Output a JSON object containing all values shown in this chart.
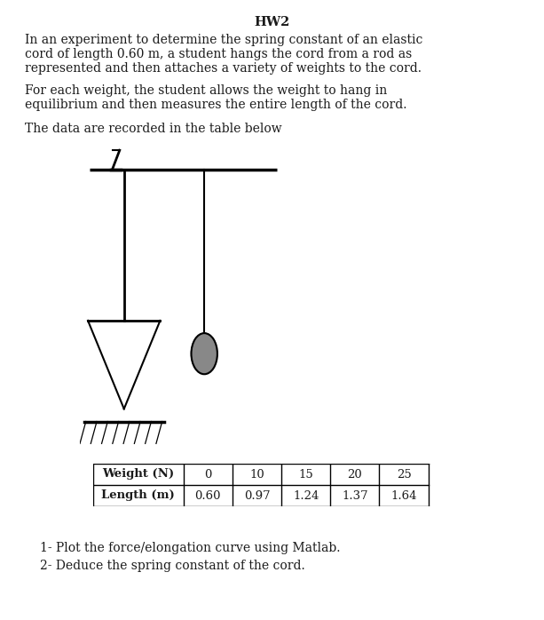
{
  "title": "HW2",
  "paragraph1_line1": "In an experiment to determine the spring constant of an elastic",
  "paragraph1_line2": "cord of length 0.60 m, a student hangs the cord from a rod as",
  "paragraph1_line3": "represented and then attaches a variety of weights to the cord.",
  "paragraph2_line1": "For each weight, the student allows the weight to hang in",
  "paragraph2_line2": "equilibrium and then measures the entire length of the cord.",
  "paragraph3": "The data are recorded in the table below",
  "table_row1": [
    "Weight (N)",
    "0",
    "10",
    "15",
    "20",
    "25"
  ],
  "table_row2": [
    "Length (m)",
    "0.60",
    "0.97",
    "1.24",
    "1.37",
    "1.64"
  ],
  "question1": "1- Plot the force/elongation curve using Matlab.",
  "question2": "2- Deduce the spring constant of the cord.",
  "bg_color": "#ffffff",
  "text_color": "#1a1a1a",
  "font_size_title": 10.5,
  "font_size_body": 10,
  "font_size_table": 9.5,
  "font_size_q": 10
}
